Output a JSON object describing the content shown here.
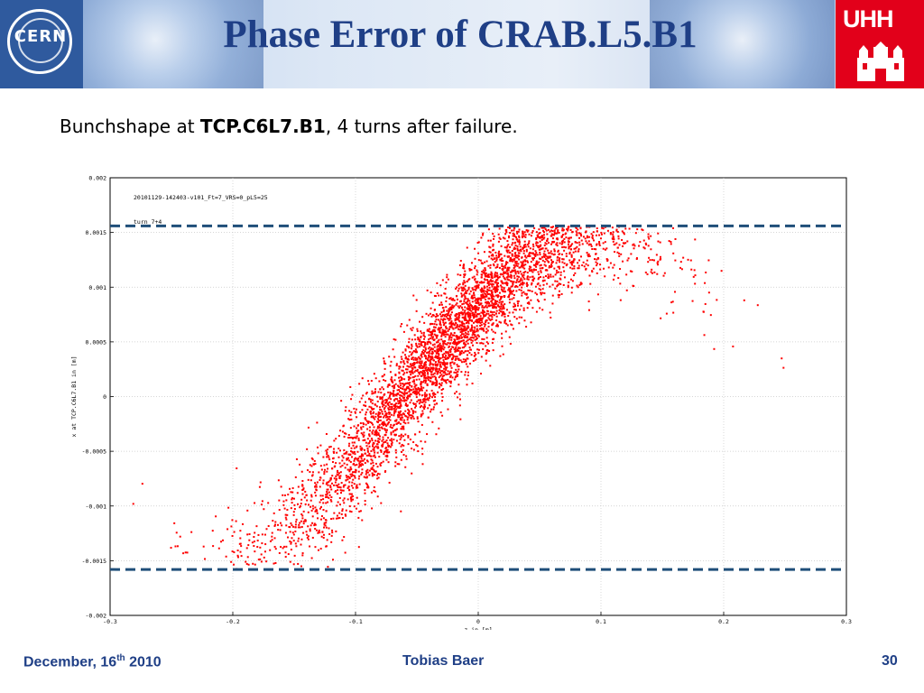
{
  "slide": {
    "title": "Phase Error of CRAB.L5.B1",
    "subtitle_pre": "Bunchshape at ",
    "subtitle_bold": "TCP.C6L7.B1",
    "subtitle_post": ", 4 turns after failure."
  },
  "logos": {
    "left": "CERN",
    "right": "UHH"
  },
  "footer": {
    "date_main": "December, 16",
    "date_sup": "th",
    "date_year": " 2010",
    "author": "Tobias Baer",
    "page": "30"
  },
  "chart_data": {
    "type": "scatter",
    "annotations": [
      "20101129-142403-v101_Ft=7_VRS=0_pL5=25",
      "turn 7+4"
    ],
    "xlabel": "z in [m]",
    "ylabel": "x at TCP.C6L7.B1 in [m]",
    "xlim": [
      -0.3,
      0.3
    ],
    "ylim": [
      -0.002,
      0.002
    ],
    "x_ticks": [
      "-0.3",
      "-0.2",
      "-0.1",
      "0",
      "0.1",
      "0.2",
      "0.3"
    ],
    "y_ticks": [
      "-0.002",
      "-0.0015",
      "-0.001",
      "-0.0005",
      "0",
      "0.0005",
      "0.001",
      "0.0015",
      "0.002"
    ],
    "grid": true,
    "reference_lines": [
      0.00156,
      -0.00158
    ],
    "marker_color": "#ff0000",
    "line_color": "#1f4e79",
    "distribution": {
      "points": 4500,
      "z_mean": -0.02,
      "z_sigma": 0.075,
      "x_peak": 0.0015,
      "curve_center": 0.06,
      "curve_scale": 0.057,
      "x_sigma": 0.00025,
      "x_floor": -0.00158,
      "x_ceiling": 0.00156
    }
  }
}
